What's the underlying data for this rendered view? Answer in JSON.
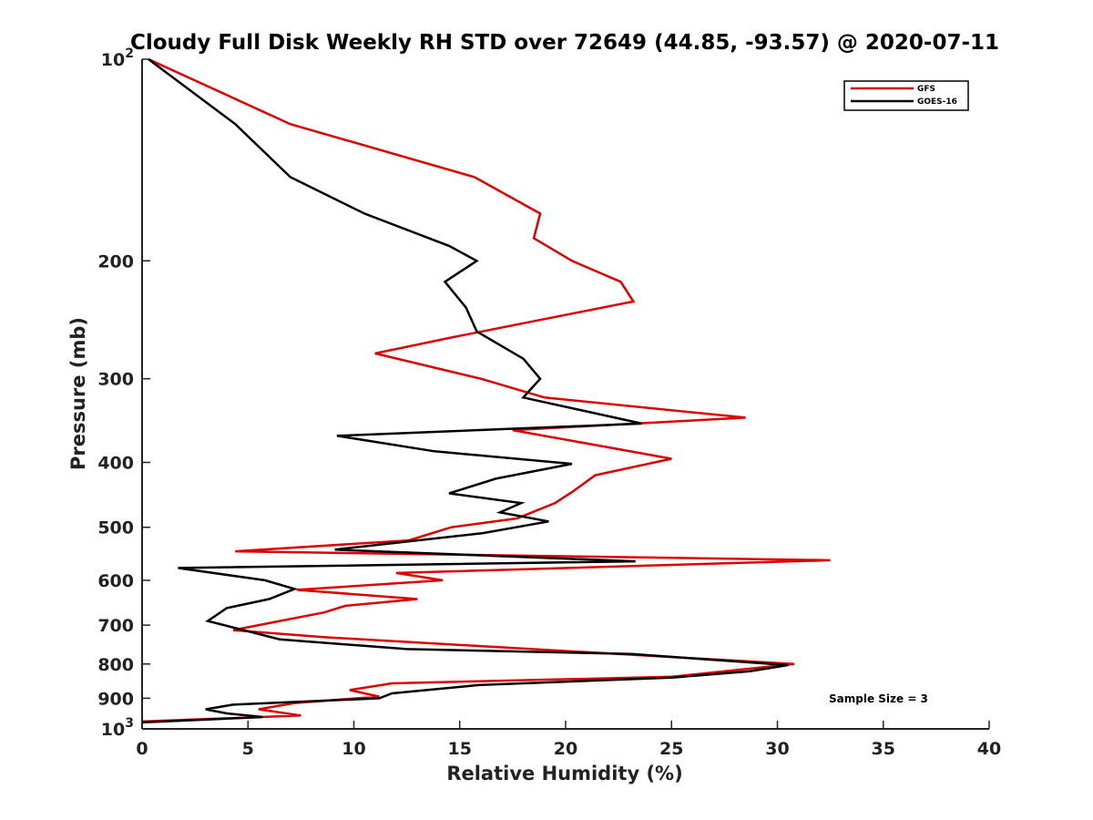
{
  "chart_data": {
    "type": "line",
    "title": "Cloudy Full Disk Weekly RH STD over 72649 (44.85, -93.57) @ 2020-07-11",
    "xlabel": "Relative Humidity (%)",
    "ylabel": "Pressure (mb)",
    "xlim": [
      0,
      40
    ],
    "ylim": [
      100,
      1000
    ],
    "y_scale": "log",
    "y_reversed": true,
    "grid": false,
    "legend_position": "top-right",
    "x_ticks": [
      "0",
      "5",
      "10",
      "15",
      "20",
      "25",
      "30",
      "35",
      "40"
    ],
    "y_ticks": [
      {
        "value": 100,
        "base": "10",
        "exp": "2"
      },
      {
        "value": 200,
        "label": "200"
      },
      {
        "value": 300,
        "label": "300"
      },
      {
        "value": 400,
        "label": "400"
      },
      {
        "value": 500,
        "label": "500"
      },
      {
        "value": 600,
        "label": "600"
      },
      {
        "value": 700,
        "label": "700"
      },
      {
        "value": 800,
        "label": "800"
      },
      {
        "value": 900,
        "label": "900"
      },
      {
        "value": 1000,
        "base": "10",
        "exp": "3"
      }
    ],
    "annotation": "Sample Size = 3",
    "series": [
      {
        "name": "GFS",
        "color": "#dd0000",
        "points": [
          [
            0.3,
            100
          ],
          [
            7.0,
            125
          ],
          [
            15.7,
            150
          ],
          [
            18.8,
            170
          ],
          [
            18.5,
            185
          ],
          [
            20.3,
            200
          ],
          [
            22.6,
            215
          ],
          [
            23.2,
            230
          ],
          [
            14.7,
            260
          ],
          [
            11.0,
            275
          ],
          [
            16.0,
            300
          ],
          [
            19.0,
            320
          ],
          [
            28.5,
            343
          ],
          [
            17.5,
            358
          ],
          [
            25.0,
            395
          ],
          [
            21.4,
            418
          ],
          [
            20.3,
            443
          ],
          [
            19.5,
            460
          ],
          [
            17.7,
            485
          ],
          [
            14.6,
            500
          ],
          [
            12.6,
            523
          ],
          [
            4.4,
            543
          ],
          [
            32.5,
            560
          ],
          [
            12.0,
            585
          ],
          [
            14.2,
            600
          ],
          [
            7.3,
            620
          ],
          [
            13.0,
            640
          ],
          [
            9.6,
            655
          ],
          [
            8.6,
            670
          ],
          [
            6.0,
            695
          ],
          [
            4.3,
            712
          ],
          [
            8.7,
            730
          ],
          [
            30.8,
            800
          ],
          [
            25.0,
            836
          ],
          [
            11.8,
            855
          ],
          [
            9.8,
            875
          ],
          [
            11.2,
            895
          ],
          [
            7.2,
            915
          ],
          [
            5.5,
            935
          ],
          [
            7.5,
            955
          ],
          [
            0.0,
            975
          ]
        ]
      },
      {
        "name": "GOES-16",
        "color": "#000000",
        "points": [
          [
            0.3,
            100
          ],
          [
            4.4,
            125
          ],
          [
            7.0,
            150
          ],
          [
            10.5,
            170
          ],
          [
            14.5,
            190
          ],
          [
            15.8,
            200
          ],
          [
            14.3,
            215
          ],
          [
            15.3,
            235
          ],
          [
            15.8,
            255
          ],
          [
            18.0,
            280
          ],
          [
            18.8,
            300
          ],
          [
            18.0,
            320
          ],
          [
            23.6,
            350
          ],
          [
            9.2,
            365
          ],
          [
            13.8,
            385
          ],
          [
            20.3,
            402
          ],
          [
            16.7,
            423
          ],
          [
            14.5,
            445
          ],
          [
            17.9,
            460
          ],
          [
            16.9,
            475
          ],
          [
            19.2,
            490
          ],
          [
            16.1,
            510
          ],
          [
            9.1,
            540
          ],
          [
            23.3,
            562
          ],
          [
            1.7,
            575
          ],
          [
            5.8,
            600
          ],
          [
            7.2,
            618
          ],
          [
            6.0,
            640
          ],
          [
            4.0,
            660
          ],
          [
            3.1,
            690
          ],
          [
            6.5,
            735
          ],
          [
            12.5,
            760
          ],
          [
            23.1,
            773
          ],
          [
            30.5,
            803
          ],
          [
            28.7,
            820
          ],
          [
            25.1,
            838
          ],
          [
            15.9,
            860
          ],
          [
            11.8,
            885
          ],
          [
            11.2,
            900
          ],
          [
            4.3,
            920
          ],
          [
            3.0,
            935
          ],
          [
            4.0,
            948
          ],
          [
            5.7,
            960
          ],
          [
            0.0,
            978
          ]
        ]
      }
    ]
  }
}
